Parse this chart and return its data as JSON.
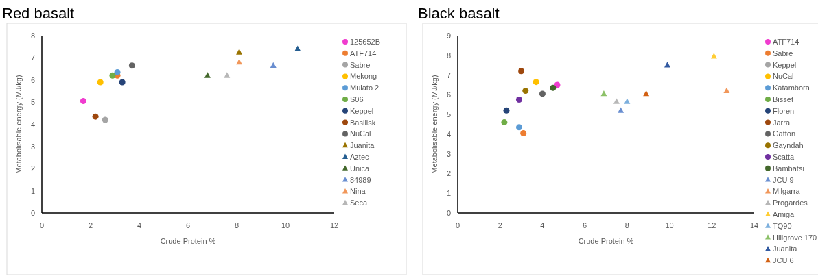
{
  "chart_data": [
    {
      "type": "scatter",
      "title": "Red basalt",
      "xlabel": "Crude Protein %",
      "ylabel": "Metabolisable energy (MJ/kg)",
      "xlim": [
        0,
        12
      ],
      "xticks": [
        0,
        2,
        4,
        6,
        8,
        10,
        12
      ],
      "ylim": [
        0,
        8
      ],
      "yticks": [
        0,
        1,
        2,
        3,
        4,
        5,
        6,
        7,
        8
      ],
      "grid": false,
      "legend": "right",
      "series": [
        {
          "name": "125652B",
          "color": "#f03ccf",
          "marker": "circle",
          "x": [
            1.7
          ],
          "values": [
            5.05
          ]
        },
        {
          "name": "ATF714",
          "color": "#ed7d31",
          "marker": "circle",
          "x": [
            3.1
          ],
          "values": [
            6.2
          ]
        },
        {
          "name": "Sabre",
          "color": "#a5a5a5",
          "marker": "circle",
          "x": [
            2.6
          ],
          "values": [
            4.2
          ]
        },
        {
          "name": "Mekong",
          "color": "#ffc000",
          "marker": "circle",
          "x": [
            2.4
          ],
          "values": [
            5.9
          ]
        },
        {
          "name": "Mulato 2",
          "color": "#5b9bd5",
          "marker": "circle",
          "x": [
            3.1
          ],
          "values": [
            6.35
          ]
        },
        {
          "name": "S06",
          "color": "#70ad47",
          "marker": "circle",
          "x": [
            2.9
          ],
          "values": [
            6.2
          ]
        },
        {
          "name": "Keppel",
          "color": "#264478",
          "marker": "circle",
          "x": [
            3.3
          ],
          "values": [
            5.9
          ]
        },
        {
          "name": "Basilisk",
          "color": "#9e480e",
          "marker": "circle",
          "x": [
            2.2
          ],
          "values": [
            4.35
          ]
        },
        {
          "name": "NuCal",
          "color": "#636363",
          "marker": "circle",
          "x": [
            3.7
          ],
          "values": [
            6.65
          ]
        },
        {
          "name": "Juanita",
          "color": "#997300",
          "marker": "triangle",
          "x": [
            8.1
          ],
          "values": [
            7.25
          ]
        },
        {
          "name": "Aztec",
          "color": "#255e91",
          "marker": "triangle",
          "x": [
            10.5
          ],
          "values": [
            7.4
          ]
        },
        {
          "name": "Unica",
          "color": "#43682b",
          "marker": "triangle",
          "x": [
            6.8
          ],
          "values": [
            6.2
          ]
        },
        {
          "name": "84989",
          "color": "#698ed0",
          "marker": "triangle",
          "x": [
            9.5
          ],
          "values": [
            6.65
          ]
        },
        {
          "name": "Nina",
          "color": "#f1975a",
          "marker": "triangle",
          "x": [
            8.1
          ],
          "values": [
            6.8
          ]
        },
        {
          "name": "Seca",
          "color": "#b7b7b7",
          "marker": "triangle",
          "x": [
            7.6
          ],
          "values": [
            6.2
          ]
        }
      ]
    },
    {
      "type": "scatter",
      "title": "Black basalt",
      "xlabel": "Crude Protein %",
      "ylabel": "Metabolisable energy (MJ/kg)",
      "xlim": [
        0,
        14
      ],
      "xticks": [
        0,
        2,
        4,
        6,
        8,
        10,
        12,
        14
      ],
      "ylim": [
        0,
        9
      ],
      "yticks": [
        0,
        1,
        2,
        3,
        4,
        5,
        6,
        7,
        8,
        9
      ],
      "grid": false,
      "legend": "right",
      "series": [
        {
          "name": "ATF714",
          "color": "#f03ccf",
          "marker": "circle",
          "x": [
            4.7
          ],
          "values": [
            6.5
          ]
        },
        {
          "name": "Sabre",
          "color": "#ed7d31",
          "marker": "circle",
          "x": [
            3.1
          ],
          "values": [
            4.05
          ]
        },
        {
          "name": "Keppel",
          "color": "#a5a5a5",
          "marker": "circle",
          "x": [
            null
          ],
          "values": [
            null
          ]
        },
        {
          "name": "NuCal",
          "color": "#ffc000",
          "marker": "circle",
          "x": [
            3.7
          ],
          "values": [
            6.65
          ]
        },
        {
          "name": "Katambora",
          "color": "#5b9bd5",
          "marker": "circle",
          "x": [
            2.9
          ],
          "values": [
            4.35
          ]
        },
        {
          "name": "Bisset",
          "color": "#70ad47",
          "marker": "circle",
          "x": [
            2.2
          ],
          "values": [
            4.6
          ]
        },
        {
          "name": "Floren",
          "color": "#264478",
          "marker": "circle",
          "x": [
            2.3
          ],
          "values": [
            5.2
          ]
        },
        {
          "name": "Jarra",
          "color": "#9e480e",
          "marker": "circle",
          "x": [
            3.0
          ],
          "values": [
            7.2
          ]
        },
        {
          "name": "Gatton",
          "color": "#636363",
          "marker": "circle",
          "x": [
            4.0
          ],
          "values": [
            6.05
          ]
        },
        {
          "name": "Gayndah",
          "color": "#997300",
          "marker": "circle",
          "x": [
            3.2
          ],
          "values": [
            6.2
          ]
        },
        {
          "name": "Scatta",
          "color": "#7030a0",
          "marker": "circle",
          "x": [
            2.9
          ],
          "values": [
            5.75
          ]
        },
        {
          "name": "Bambatsi",
          "color": "#43682b",
          "marker": "circle",
          "x": [
            4.5
          ],
          "values": [
            6.35
          ]
        },
        {
          "name": "JCU 9",
          "color": "#698ed0",
          "marker": "triangle",
          "x": [
            7.7
          ],
          "values": [
            5.2
          ]
        },
        {
          "name": "Milgarra",
          "color": "#f1975a",
          "marker": "triangle",
          "x": [
            12.7
          ],
          "values": [
            6.2
          ]
        },
        {
          "name": "Progardes",
          "color": "#b7b7b7",
          "marker": "triangle",
          "x": [
            7.5
          ],
          "values": [
            5.65
          ]
        },
        {
          "name": "Amiga",
          "color": "#ffcd33",
          "marker": "triangle",
          "x": [
            12.1
          ],
          "values": [
            7.95
          ]
        },
        {
          "name": "TQ90",
          "color": "#7cafdd",
          "marker": "triangle",
          "x": [
            8.0
          ],
          "values": [
            5.65
          ]
        },
        {
          "name": "Hillgrove 170",
          "color": "#8cc168",
          "marker": "triangle",
          "x": [
            6.9
          ],
          "values": [
            6.05
          ]
        },
        {
          "name": "Juanita",
          "color": "#335aa1",
          "marker": "triangle",
          "x": [
            9.9
          ],
          "values": [
            7.5
          ]
        },
        {
          "name": "JCU 6",
          "color": "#d26012",
          "marker": "triangle",
          "x": [
            8.9
          ],
          "values": [
            6.05
          ]
        }
      ]
    }
  ]
}
